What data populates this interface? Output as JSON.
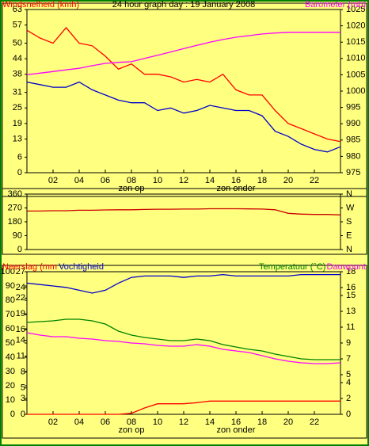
{
  "chart_data": [
    {
      "type": "line",
      "title": "24 hour graph day : 19 January 2008",
      "x": [
        0,
        1,
        2,
        3,
        4,
        5,
        6,
        7,
        8,
        9,
        10,
        11,
        12,
        13,
        14,
        15,
        16,
        17,
        18,
        19,
        20,
        21,
        22,
        23,
        24
      ],
      "xlim": [
        0,
        24
      ],
      "xticks": [
        {
          "value": 2,
          "label": "02"
        },
        {
          "value": 4,
          "label": "04"
        },
        {
          "value": 6,
          "label": "06"
        },
        {
          "value": 8,
          "label": "08"
        },
        10,
        12,
        14,
        16,
        18,
        20,
        22
      ],
      "annotations": [
        {
          "x": 8,
          "text": "zon op"
        },
        {
          "x": 16,
          "text": "zon onder"
        }
      ],
      "ylim": [
        0,
        63
      ],
      "yticks": [
        63,
        57,
        50,
        44,
        38,
        31,
        25,
        19,
        13,
        6,
        0
      ],
      "y2lim": [
        975,
        1025
      ],
      "y2ticks": [
        1025,
        1020,
        1015,
        1010,
        1005,
        1000,
        995,
        990,
        985,
        980,
        975
      ],
      "series": [
        {
          "name": "Windsnelheid (kmh)",
          "color": "#ff0000",
          "values": [
            55,
            52,
            50,
            56,
            50,
            49,
            45,
            40,
            42,
            38,
            38,
            37,
            35,
            36,
            35,
            38,
            32,
            30,
            30,
            24,
            19,
            17,
            15,
            13,
            12
          ]
        },
        {
          "color": "#0000cc",
          "values": [
            35,
            34,
            33,
            33,
            35,
            32,
            30,
            28,
            27,
            27,
            24,
            25,
            23,
            24,
            26,
            25,
            24,
            24,
            22,
            16,
            14,
            11,
            9,
            8,
            10
          ]
        },
        {
          "name": "Barometer (mb)",
          "color": "#ff00ff",
          "axis": "y2",
          "values": [
            1005,
            1005.5,
            1006,
            1006.5,
            1007,
            1007.8,
            1008.5,
            1008.8,
            1009,
            1010,
            1011,
            1012,
            1013,
            1014,
            1015,
            1015.8,
            1016.5,
            1017,
            1017.5,
            1017.8,
            1018,
            1018,
            1018,
            1018,
            1018
          ]
        }
      ]
    },
    {
      "type": "line",
      "x": [
        0,
        1,
        2,
        3,
        4,
        5,
        6,
        7,
        8,
        9,
        10,
        11,
        12,
        13,
        14,
        15,
        16,
        17,
        18,
        19,
        20,
        21,
        22,
        23,
        24
      ],
      "xlim": [
        0,
        24
      ],
      "ylim": [
        0,
        360
      ],
      "yticks": [
        360,
        270,
        180,
        90,
        0
      ],
      "y2lim": [
        0,
        360
      ],
      "y2ticks": [
        {
          "value": 360,
          "label": "N"
        },
        {
          "value": 270,
          "label": "W"
        },
        {
          "value": 180,
          "label": "S"
        },
        {
          "value": 90,
          "label": "E"
        },
        {
          "value": 0,
          "label": "N"
        }
      ],
      "series": [
        {
          "color": "#cc0000",
          "values": [
            250,
            250,
            252,
            252,
            255,
            255,
            257,
            258,
            258,
            260,
            262,
            262,
            263,
            263,
            265,
            265,
            265,
            264,
            263,
            258,
            235,
            230,
            228,
            228,
            225
          ]
        }
      ]
    },
    {
      "type": "line",
      "x": [
        0,
        1,
        2,
        3,
        4,
        5,
        6,
        7,
        8,
        9,
        10,
        11,
        12,
        13,
        14,
        15,
        16,
        17,
        18,
        19,
        20,
        21,
        22,
        23,
        24
      ],
      "xlim": [
        0,
        24
      ],
      "xticks": [
        {
          "value": 2,
          "label": "02"
        },
        {
          "value": 4,
          "label": "04"
        },
        {
          "value": 6,
          "label": "06"
        },
        {
          "value": 8,
          "label": "08"
        },
        10,
        12,
        14,
        16,
        18,
        20,
        22
      ],
      "annotations": [
        {
          "x": 8,
          "text": "zon op"
        },
        {
          "x": 16,
          "text": "zon onder"
        }
      ],
      "ylim": [
        0,
        100
      ],
      "yticks": [
        100,
        90,
        80,
        70,
        60,
        50,
        40,
        30,
        20,
        10,
        0
      ],
      "y3lim": [
        0,
        27
      ],
      "y3ticks": [
        27,
        24,
        22,
        19,
        16,
        14,
        11,
        8,
        5,
        3,
        0
      ],
      "y2lim": [
        0,
        18
      ],
      "y2ticks": [
        18,
        16,
        15,
        13,
        11,
        9,
        7,
        5,
        4,
        2,
        0
      ],
      "series": [
        {
          "name": "Neerslag (mm",
          "color": "#ff0000",
          "axis": "y3",
          "values": [
            0,
            0,
            0,
            0,
            0,
            0,
            0,
            0,
            0.2,
            1.2,
            2,
            2,
            2,
            2.2,
            2.5,
            2.5,
            2.5,
            2.5,
            2.5,
            2.5,
            2.5,
            2.5,
            2.5,
            2.5,
            2.5
          ]
        },
        {
          "name": "Vochtigheid",
          "color": "#0000cc",
          "values": [
            92,
            91,
            90,
            89,
            87,
            85,
            87,
            92,
            96,
            97,
            97,
            97,
            96,
            97,
            97,
            98,
            97,
            97,
            97,
            97,
            97,
            98,
            98,
            98,
            98
          ]
        },
        {
          "name": "Temperatuur (°C)",
          "color": "#008000",
          "axis": "y2",
          "values": [
            11.6,
            11.7,
            11.8,
            12,
            12,
            11.8,
            11.4,
            10.5,
            10,
            9.7,
            9.5,
            9.3,
            9.3,
            9.5,
            9.3,
            8.8,
            8.5,
            8.2,
            8,
            7.6,
            7.3,
            7,
            6.9,
            6.9,
            6.9
          ]
        },
        {
          "name": "Dauwpunt",
          "color": "#ff00ff",
          "axis": "y2",
          "values": [
            10.3,
            10,
            9.8,
            9.8,
            9.6,
            9.5,
            9.3,
            9.2,
            9,
            8.9,
            8.7,
            8.6,
            8.6,
            8.8,
            8.6,
            8.2,
            8,
            7.8,
            7.4,
            7,
            6.7,
            6.5,
            6.4,
            6.4,
            6.5
          ]
        }
      ]
    }
  ]
}
